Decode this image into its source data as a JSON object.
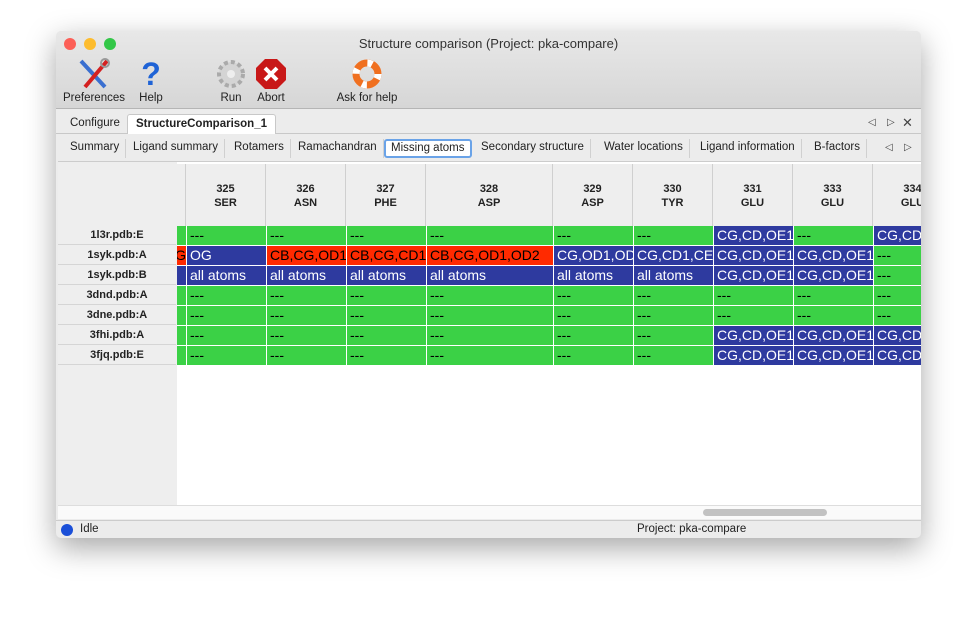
{
  "window": {
    "title": "Structure comparison (Project: pka-compare)"
  },
  "toolbar": [
    {
      "label": "Preferences",
      "icon": "preferences-tools-icon"
    },
    {
      "label": "Help",
      "icon": "help-question-icon"
    },
    {
      "label": "Run",
      "icon": "run-gear-icon"
    },
    {
      "label": "Abort",
      "icon": "abort-stop-icon"
    },
    {
      "label": "Ask for help",
      "icon": "lifebuoy-icon"
    }
  ],
  "top_tabs": [
    {
      "label": "Configure",
      "active": false
    },
    {
      "label": "StructureComparison_1",
      "active": true
    }
  ],
  "sub_tabs": [
    {
      "label": "Summary"
    },
    {
      "label": "Ligand summary"
    },
    {
      "label": "Rotamers"
    },
    {
      "label": "Ramachandran"
    },
    {
      "label": "Missing atoms",
      "active": true
    },
    {
      "label": "Secondary structure"
    },
    {
      "label": "Water locations"
    },
    {
      "label": "Ligand information"
    },
    {
      "label": "B-factors"
    }
  ],
  "colors": {
    "ok": "#3bd146",
    "missing_blue": "#2e3a9f",
    "missing_red": "#ff2a00"
  },
  "table": {
    "columns": [
      {
        "num": "",
        "res": ""
      },
      {
        "num": "325",
        "res": "SER"
      },
      {
        "num": "326",
        "res": "ASN"
      },
      {
        "num": "327",
        "res": "PHE"
      },
      {
        "num": "328",
        "res": "ASP"
      },
      {
        "num": "329",
        "res": "ASP"
      },
      {
        "num": "330",
        "res": "TYR"
      },
      {
        "num": "331",
        "res": "GLU"
      },
      {
        "num": "333",
        "res": "GLU"
      },
      {
        "num": "334",
        "res": "GLU"
      }
    ],
    "rows": [
      {
        "label": "1l3r.pdb:E",
        "cells": [
          [
            "",
            "g"
          ],
          [
            "---",
            "g"
          ],
          [
            "---",
            "g"
          ],
          [
            "---",
            "g"
          ],
          [
            "---",
            "g"
          ],
          [
            "---",
            "g"
          ],
          [
            "---",
            "g"
          ],
          [
            "CG,CD,OE1",
            "b"
          ],
          [
            "---",
            "g"
          ],
          [
            "CG,CD",
            "b"
          ]
        ]
      },
      {
        "label": "1syk.pdb:A",
        "cells": [
          [
            "G",
            "r"
          ],
          [
            "OG",
            "b"
          ],
          [
            "CB,CG,OD1",
            "r"
          ],
          [
            "CB,CG,CD1",
            "r"
          ],
          [
            "CB,CG,OD1,OD2",
            "r"
          ],
          [
            "CG,OD1,OD",
            "b"
          ],
          [
            "CG,CD1,CE",
            "b"
          ],
          [
            "CG,CD,OE1",
            "b"
          ],
          [
            "CG,CD,OE1",
            "b"
          ],
          [
            "---",
            "g"
          ]
        ]
      },
      {
        "label": "1syk.pdb:B",
        "cells": [
          [
            "",
            "b"
          ],
          [
            "all atoms",
            "b"
          ],
          [
            "all atoms",
            "b"
          ],
          [
            "all atoms",
            "b"
          ],
          [
            "all atoms",
            "b"
          ],
          [
            "all atoms",
            "b"
          ],
          [
            "all atoms",
            "b"
          ],
          [
            "CG,CD,OE1",
            "b"
          ],
          [
            "CG,CD,OE1",
            "b"
          ],
          [
            "---",
            "g"
          ]
        ]
      },
      {
        "label": "3dnd.pdb:A",
        "cells": [
          [
            "",
            "g"
          ],
          [
            "---",
            "g"
          ],
          [
            "---",
            "g"
          ],
          [
            "---",
            "g"
          ],
          [
            "---",
            "g"
          ],
          [
            "---",
            "g"
          ],
          [
            "---",
            "g"
          ],
          [
            "---",
            "g"
          ],
          [
            "---",
            "g"
          ],
          [
            "---",
            "g"
          ]
        ]
      },
      {
        "label": "3dne.pdb:A",
        "cells": [
          [
            "",
            "g"
          ],
          [
            "---",
            "g"
          ],
          [
            "---",
            "g"
          ],
          [
            "---",
            "g"
          ],
          [
            "---",
            "g"
          ],
          [
            "---",
            "g"
          ],
          [
            "---",
            "g"
          ],
          [
            "---",
            "g"
          ],
          [
            "---",
            "g"
          ],
          [
            "---",
            "g"
          ]
        ]
      },
      {
        "label": "3fhi.pdb:A",
        "cells": [
          [
            "",
            "g"
          ],
          [
            "---",
            "g"
          ],
          [
            "---",
            "g"
          ],
          [
            "---",
            "g"
          ],
          [
            "---",
            "g"
          ],
          [
            "---",
            "g"
          ],
          [
            "---",
            "g"
          ],
          [
            "CG,CD,OE1",
            "b"
          ],
          [
            "CG,CD,OE1",
            "b"
          ],
          [
            "CG,CD",
            "b"
          ]
        ]
      },
      {
        "label": "3fjq.pdb:E",
        "cells": [
          [
            "",
            "g"
          ],
          [
            "---",
            "g"
          ],
          [
            "---",
            "g"
          ],
          [
            "---",
            "g"
          ],
          [
            "---",
            "g"
          ],
          [
            "---",
            "g"
          ],
          [
            "---",
            "g"
          ],
          [
            "CG,CD,OE1",
            "b"
          ],
          [
            "CG,CD,OE1",
            "b"
          ],
          [
            "CG,CD",
            "b"
          ]
        ]
      }
    ]
  },
  "status": {
    "state": "Idle",
    "project": "Project: pka-compare"
  }
}
